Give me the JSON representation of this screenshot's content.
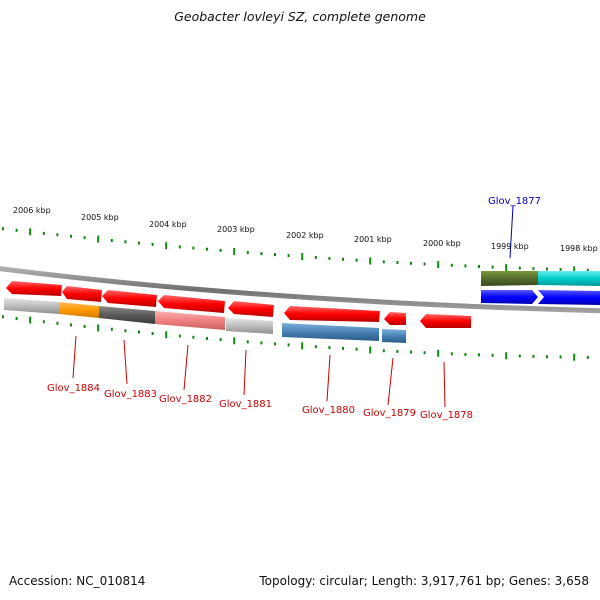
{
  "title": "Geobacter lovleyi SZ, complete genome",
  "footer": {
    "accession": "Accession: NC_010814",
    "summary": "Topology: circular; Length: 3,917,761 bp; Genes: 3,658"
  },
  "scale_labels": [
    "2006 kbp",
    "2005 kbp",
    "2004 kbp",
    "2003 kbp",
    "2002 kbp",
    "2001 kbp",
    "2000 kbp",
    "1999 kbp",
    "1998 kbp"
  ],
  "genes": [
    {
      "label": "Glov_1884",
      "color": "#cc0000"
    },
    {
      "label": "Glov_1883",
      "color": "#cc0000"
    },
    {
      "label": "Glov_1882",
      "color": "#cc0000"
    },
    {
      "label": "Glov_1881",
      "color": "#cc0000"
    },
    {
      "label": "Glov_1880",
      "color": "#cc0000"
    },
    {
      "label": "Glov_1879",
      "color": "#cc0000"
    },
    {
      "label": "Glov_1878",
      "color": "#cc0000"
    },
    {
      "label": "Glov_1877",
      "color": "#0000bb"
    }
  ],
  "colors": {
    "tick": "#118811",
    "backbone": "#7a7a7a",
    "forward_gene": "#ff0000",
    "reverse_gene": "#0000ff",
    "cog_orange": "#ff9900",
    "cog_darkgray": "#555555",
    "cog_pink": "#f08080",
    "cog_lightgray": "#bbbbbb",
    "cog_steelblue": "#4682b4",
    "cog_olive": "#556b2f",
    "cog_cyan": "#00cccc"
  }
}
